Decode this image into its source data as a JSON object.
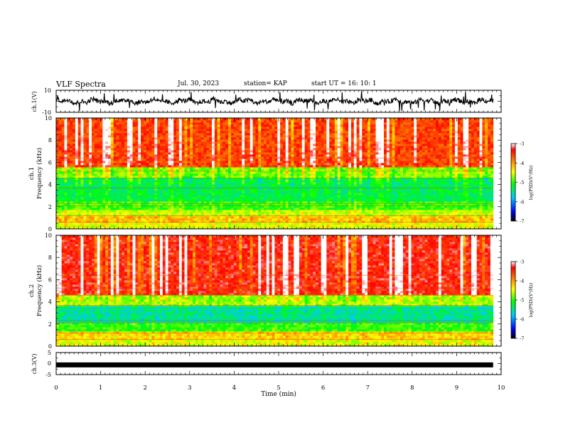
{
  "header": {
    "title": "VLF Spectra",
    "date": "Jul. 30, 2023",
    "station": "station= KAP",
    "start": "start  UT =   16: 10: 1"
  },
  "colors": {
    "trace": "#000000",
    "colormap": [
      "#000000",
      "#0000ff",
      "#00c8ff",
      "#00ff00",
      "#ffff00",
      "#ff8000",
      "#ff0000",
      "#ffffff"
    ]
  },
  "chart_data": [
    {
      "type": "line",
      "name": "ch1-waveform",
      "ylabel": "ch.1(V)",
      "ylim": [
        -10,
        10
      ],
      "yticks": [
        "10",
        "-10"
      ],
      "xlim": [
        0,
        10
      ],
      "x_extent_min": 9.82,
      "description_level": "noisy waveform roughly between -6 and 8 V with a baseline near 0"
    },
    {
      "type": "heatmap",
      "name": "ch1-spectrogram",
      "ylabel": "ch.1\nFrequency (kHz)",
      "ylim": [
        0,
        10
      ],
      "yticks": [
        "0",
        "2",
        "4",
        "6",
        "8",
        "10"
      ],
      "xlim": [
        0,
        10
      ],
      "x_extent_min": 9.82,
      "colorbar": {
        "label": "log(PSD)(V²/Hz)",
        "range": [
          -7,
          -3
        ],
        "ticks": [
          "-3",
          "-4",
          "-5",
          "-6",
          "-7"
        ]
      },
      "bands_log_psd": [
        {
          "freq_khz": [
            0.0,
            0.6
          ],
          "level": -4.5
        },
        {
          "freq_khz": [
            0.6,
            1.2
          ],
          "level": -4.2
        },
        {
          "freq_khz": [
            1.2,
            1.8
          ],
          "level": -4.6
        },
        {
          "freq_khz": [
            1.8,
            2.5
          ],
          "level": -5.0
        },
        {
          "freq_khz": [
            2.5,
            4.6
          ],
          "level": -5.3
        },
        {
          "freq_khz": [
            4.6,
            5.6
          ],
          "level": -4.8
        },
        {
          "freq_khz": [
            5.6,
            10.0
          ],
          "level": -3.6
        }
      ]
    },
    {
      "type": "heatmap",
      "name": "ch2-spectrogram",
      "ylabel": "ch.2\nFrequency (kHz)",
      "ylim": [
        0,
        10
      ],
      "yticks": [
        "0",
        "2",
        "4",
        "6",
        "8",
        "10"
      ],
      "xlim": [
        0,
        10
      ],
      "x_extent_min": 9.82,
      "colorbar": {
        "label": "log(PSD)(V²/Hz)",
        "range": [
          -7,
          -3
        ],
        "ticks": [
          "-3",
          "-4",
          "-5",
          "-6",
          "-7"
        ]
      },
      "bands_log_psd": [
        {
          "freq_khz": [
            0.0,
            0.6
          ],
          "level": -4.5
        },
        {
          "freq_khz": [
            0.6,
            1.4
          ],
          "level": -4.3
        },
        {
          "freq_khz": [
            1.4,
            2.2
          ],
          "level": -5.0
        },
        {
          "freq_khz": [
            2.2,
            3.6
          ],
          "level": -5.5
        },
        {
          "freq_khz": [
            3.6,
            4.6
          ],
          "level": -4.7
        },
        {
          "freq_khz": [
            4.6,
            10.0
          ],
          "level": -3.4
        }
      ]
    },
    {
      "type": "line",
      "name": "ch3-waveform",
      "ylabel": "ch.3(V)",
      "ylim": [
        -5,
        5
      ],
      "yticks": [
        "5",
        "0",
        "-5"
      ],
      "xlim": [
        0,
        10
      ],
      "x_extent_min": 9.82,
      "level_v": -0.6
    }
  ],
  "xaxis": {
    "label": "Time (min)",
    "ticks": [
      "0",
      "1",
      "2",
      "3",
      "4",
      "5",
      "6",
      "7",
      "8",
      "9",
      "10"
    ]
  }
}
